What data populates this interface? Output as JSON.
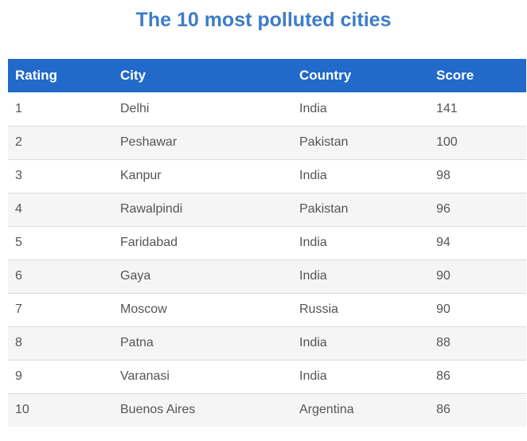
{
  "title": "The 10 most polluted cities",
  "table": {
    "headers": [
      "Rating",
      "City",
      "Country",
      "Score"
    ],
    "rows": [
      [
        "1",
        "Delhi",
        "India",
        "141"
      ],
      [
        "2",
        "Peshawar",
        "Pakistan",
        "100"
      ],
      [
        "3",
        "Kanpur",
        "India",
        "98"
      ],
      [
        "4",
        "Rawalpindi",
        "Pakistan",
        "96"
      ],
      [
        "5",
        "Faridabad",
        "India",
        "94"
      ],
      [
        "6",
        "Gaya",
        "India",
        "90"
      ],
      [
        "7",
        "Moscow",
        "Russia",
        "90"
      ],
      [
        "8",
        "Patna",
        "India",
        "88"
      ],
      [
        "9",
        "Varanasi",
        "India",
        "86"
      ],
      [
        "10",
        "Buenos Aires",
        "Argentina",
        "86"
      ]
    ]
  },
  "colors": {
    "title": "#3d7cc9",
    "header_bg": "#216ac9",
    "header_text": "#ffffff",
    "row_alt_bg": "#f5f5f5",
    "cell_text": "#555555"
  }
}
